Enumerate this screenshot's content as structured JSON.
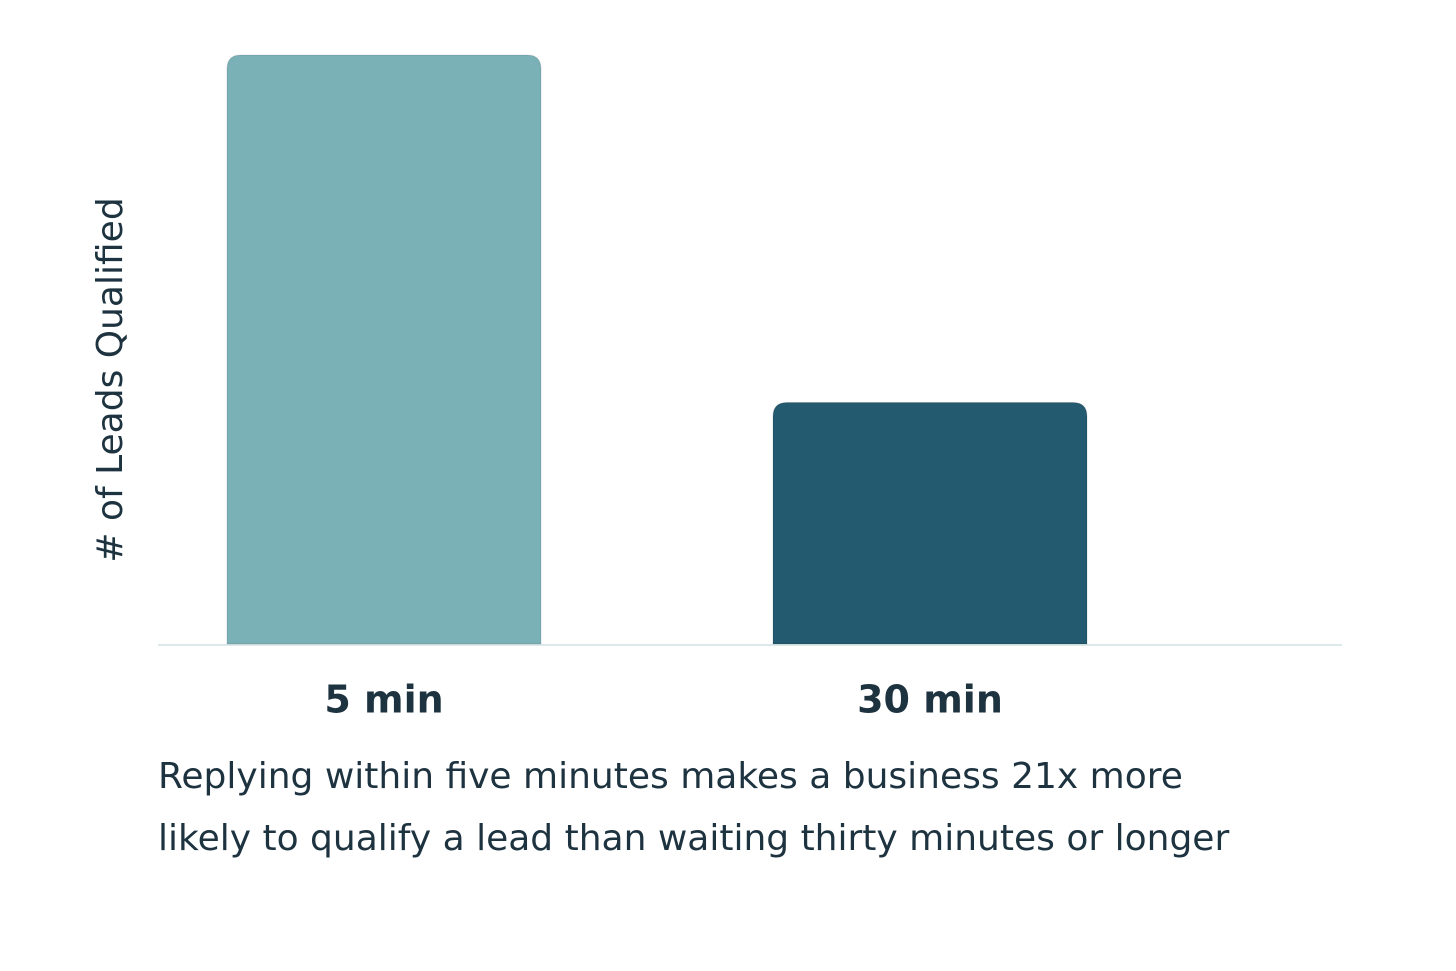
{
  "chart_data": {
    "type": "bar",
    "y_label": "# of Leads Qualified",
    "categories": [
      "5 min",
      "30 min"
    ],
    "values": [
      100,
      41
    ],
    "colors": [
      "#7ab1b6",
      "#245a70"
    ],
    "caption": [
      "Replying within five minutes makes a business 21x more",
      "likely to qualify a lead than waiting thirty minutes or longer"
    ]
  }
}
